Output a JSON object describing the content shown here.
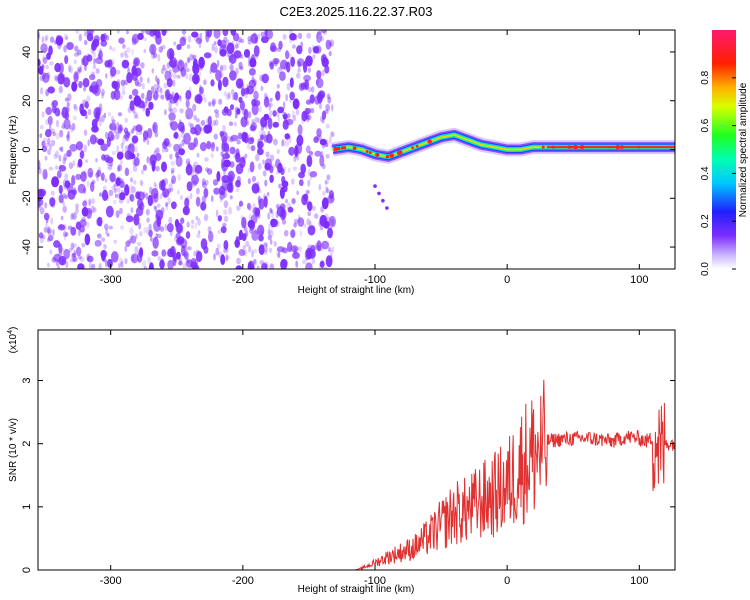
{
  "title": "C2E3.2025.116.22.37.R03",
  "colors": {
    "noise": "#7d2cff",
    "snr_line": "#e03030",
    "axis": "#000000"
  },
  "chart_data": [
    {
      "type": "heatmap",
      "xlabel": "Height of straight line (km)",
      "ylabel": "Frequency (Hz)",
      "xlim": [
        -355,
        127
      ],
      "ylim": [
        -49,
        49
      ],
      "x_ticks": [
        -300,
        -200,
        -100,
        0,
        100
      ],
      "x_tick_labels": [
        "-300",
        "-200",
        "-100",
        "0",
        "100"
      ],
      "y_ticks": [
        -40,
        -20,
        0,
        20,
        40
      ],
      "y_tick_labels": [
        "-40",
        "-20",
        "0",
        "20",
        "40"
      ],
      "noise_region_x": [
        -355,
        -132
      ],
      "signal_track": {
        "x": [
          -132,
          -120,
          -110,
          -100,
          -90,
          -80,
          -70,
          -60,
          -50,
          -40,
          -30,
          -20,
          -10,
          0,
          10,
          20,
          40,
          60,
          80,
          100,
          115,
          127
        ],
        "y": [
          0,
          1,
          0,
          -2,
          -3,
          -1,
          1,
          3,
          5,
          6,
          4,
          2,
          1,
          0,
          0,
          1,
          1,
          1,
          1,
          1,
          1,
          1
        ]
      },
      "colorbar": {
        "label": "Normalized spectral amplitude",
        "range": [
          0,
          1
        ],
        "ticks": [
          0.0,
          0.2,
          0.4,
          0.6,
          0.8
        ],
        "tick_labels": [
          "0.0",
          "0.2",
          "0.4",
          "0.6",
          "0.8"
        ]
      },
      "grid": false
    },
    {
      "type": "line",
      "xlabel": "Height of straight line (km)",
      "ylabel": "SNR (10 * v/v)",
      "y_multiplier": "(x10",
      "y_multiplier_exp": "4",
      "y_multiplier_close": ")",
      "xlim": [
        -355,
        127
      ],
      "ylim": [
        0,
        3.8
      ],
      "x_ticks": [
        -300,
        -200,
        -100,
        0,
        100
      ],
      "x_tick_labels": [
        "-300",
        "-200",
        "-100",
        "0",
        "100"
      ],
      "y_ticks": [
        0,
        1,
        2,
        3
      ],
      "y_tick_labels": [
        "0",
        "1",
        "2",
        "3"
      ],
      "series": [
        {
          "x": [
            -355,
            -200,
            -115,
            -110,
            -100,
            -90,
            -80,
            -70,
            -60,
            -50,
            -40,
            -30,
            -20,
            -10,
            0,
            10,
            20,
            30,
            40,
            60,
            80,
            90,
            100,
            105,
            110,
            113,
            116,
            118,
            122,
            127
          ],
          "y": [
            0,
            0,
            0,
            0.03,
            0.12,
            0.22,
            0.3,
            0.38,
            0.55,
            0.75,
            0.95,
            1.0,
            1.15,
            1.25,
            1.4,
            1.75,
            1.95,
            2.05,
            2.08,
            2.1,
            2.05,
            2.12,
            2.1,
            2.05,
            2.1,
            2.2,
            1.9,
            2.0,
            2.02,
            2.02
          ]
        }
      ],
      "grid": false
    }
  ]
}
